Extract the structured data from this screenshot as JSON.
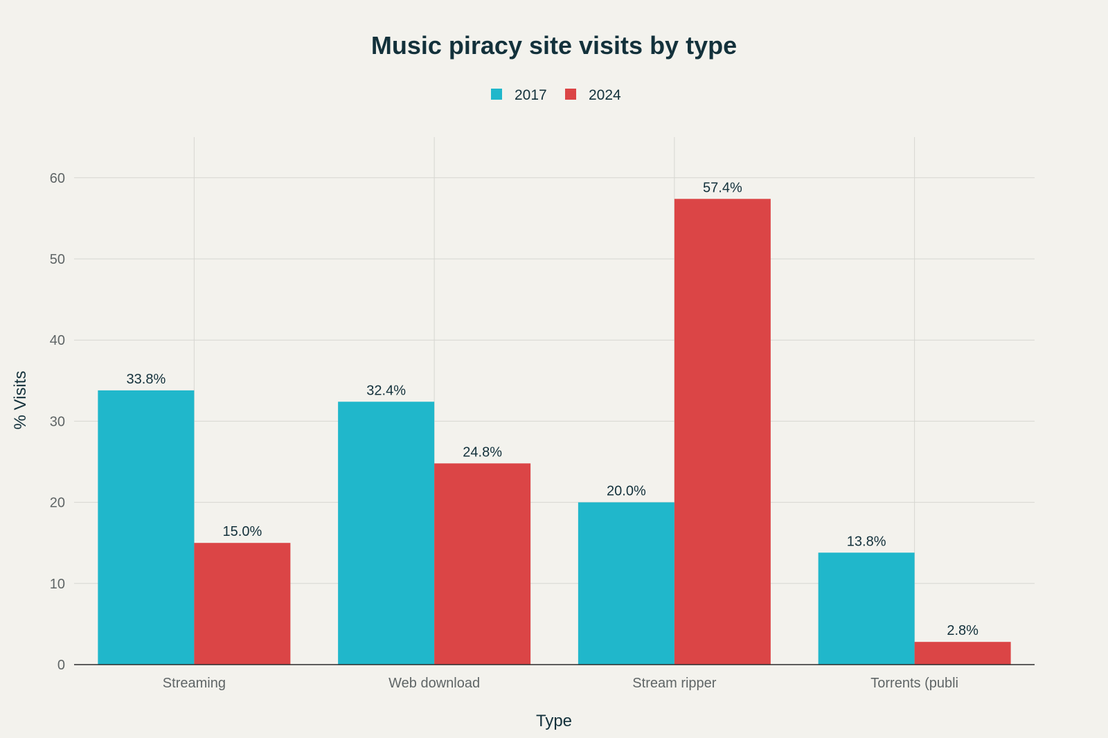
{
  "chart_data": {
    "type": "bar",
    "title": "Music piracy site visits by type",
    "xlabel": "Type",
    "ylabel": "% Visits",
    "categories": [
      "Streaming",
      "Web download",
      "Stream ripper",
      "Torrents (publi"
    ],
    "series": [
      {
        "name": "2017",
        "color": "#20b7cb",
        "values": [
          33.8,
          32.4,
          20.0,
          13.8
        ],
        "labels": [
          "33.8%",
          "32.4%",
          "20.0%",
          "13.8%"
        ]
      },
      {
        "name": "2024",
        "color": "#db4546",
        "values": [
          15.0,
          24.8,
          57.4,
          2.8
        ],
        "labels": [
          "15.0%",
          "24.8%",
          "57.4%",
          "2.8%"
        ]
      }
    ],
    "ylim": [
      0,
      65
    ],
    "yticks": [
      0,
      10,
      20,
      30,
      40,
      50,
      60
    ],
    "grid": true,
    "legend_position": "top-center"
  }
}
